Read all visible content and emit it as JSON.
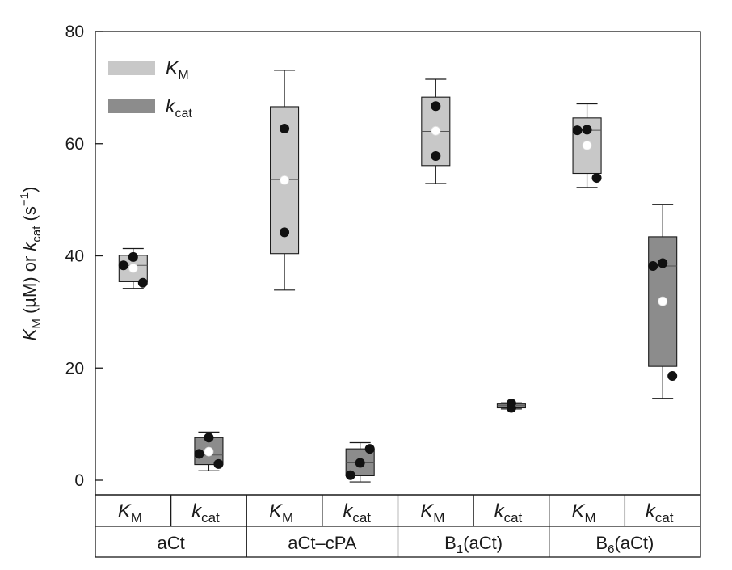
{
  "chart_data": {
    "type": "box",
    "ylabel": "K_M (µM) or k_cat (s^-1)",
    "ylabel_parts": {
      "k1": "K",
      "k1_sub": "M",
      "mid": " (µM) or ",
      "k2": "k",
      "k2_sub": "cat",
      "unit": " (s",
      "unit_sup": "−1",
      "close": ")"
    },
    "ylim": [
      0,
      80
    ],
    "yticks": [
      0,
      20,
      40,
      60,
      80
    ],
    "grid": false,
    "legend_position": "top-left",
    "series": [
      {
        "name": "K_M",
        "label": "K",
        "sub": "M",
        "color": "#c8c8c8"
      },
      {
        "name": "k_cat",
        "label": "k",
        "sub": "cat",
        "color": "#8c8c8c"
      }
    ],
    "groups": [
      {
        "name": "aCt",
        "sub": "",
        "suffix": "",
        "boxes": [
          {
            "series": "K_M",
            "whisker_low": 34.2,
            "q1": 35.4,
            "median": 38.3,
            "q3": 40.1,
            "whisker_high": 41.3,
            "mean": 37.8,
            "points": [
              38.3,
              39.8,
              35.2
            ]
          },
          {
            "series": "k_cat",
            "whisker_low": 1.7,
            "q1": 2.8,
            "median": 4.5,
            "q3": 7.6,
            "whisker_high": 8.6,
            "mean": 5.1,
            "points": [
              4.7,
              7.6,
              2.9
            ]
          }
        ]
      },
      {
        "name": "aCt–cPA",
        "sub": "",
        "suffix": "",
        "boxes": [
          {
            "series": "K_M",
            "whisker_low": 33.9,
            "q1": 40.4,
            "median": 53.6,
            "q3": 66.6,
            "whisker_high": 73.1,
            "mean": 53.5,
            "points": [
              62.7,
              44.2
            ]
          },
          {
            "series": "k_cat",
            "whisker_low": -0.3,
            "q1": 0.8,
            "median": 3.1,
            "q3": 5.6,
            "whisker_high": 6.7,
            "mean": 3.1,
            "points": [
              0.9,
              3.1,
              5.6
            ]
          }
        ]
      },
      {
        "name": "B",
        "sub": "1",
        "suffix": "(aCt)",
        "boxes": [
          {
            "series": "K_M",
            "whisker_low": 52.9,
            "q1": 56.1,
            "median": 62.2,
            "q3": 68.3,
            "whisker_high": 71.5,
            "mean": 62.3,
            "points": [
              66.7,
              57.8
            ]
          },
          {
            "series": "k_cat",
            "whisker_low": 12.7,
            "q1": 12.9,
            "median": 13.3,
            "q3": 13.6,
            "whisker_high": 13.8,
            "mean": 13.3,
            "points": [
              13.7,
              12.9
            ]
          }
        ]
      },
      {
        "name": "B",
        "sub": "6",
        "suffix": "(aCt)",
        "boxes": [
          {
            "series": "K_M",
            "whisker_low": 52.2,
            "q1": 54.7,
            "median": 62.4,
            "q3": 64.6,
            "whisker_high": 67.1,
            "mean": 59.7,
            "points": [
              62.4,
              62.5,
              53.9
            ]
          },
          {
            "series": "k_cat",
            "whisker_low": 14.6,
            "q1": 20.3,
            "median": 38.2,
            "q3": 43.4,
            "whisker_high": 49.2,
            "mean": 31.9,
            "points": [
              38.2,
              38.7,
              18.6
            ]
          }
        ]
      }
    ]
  }
}
